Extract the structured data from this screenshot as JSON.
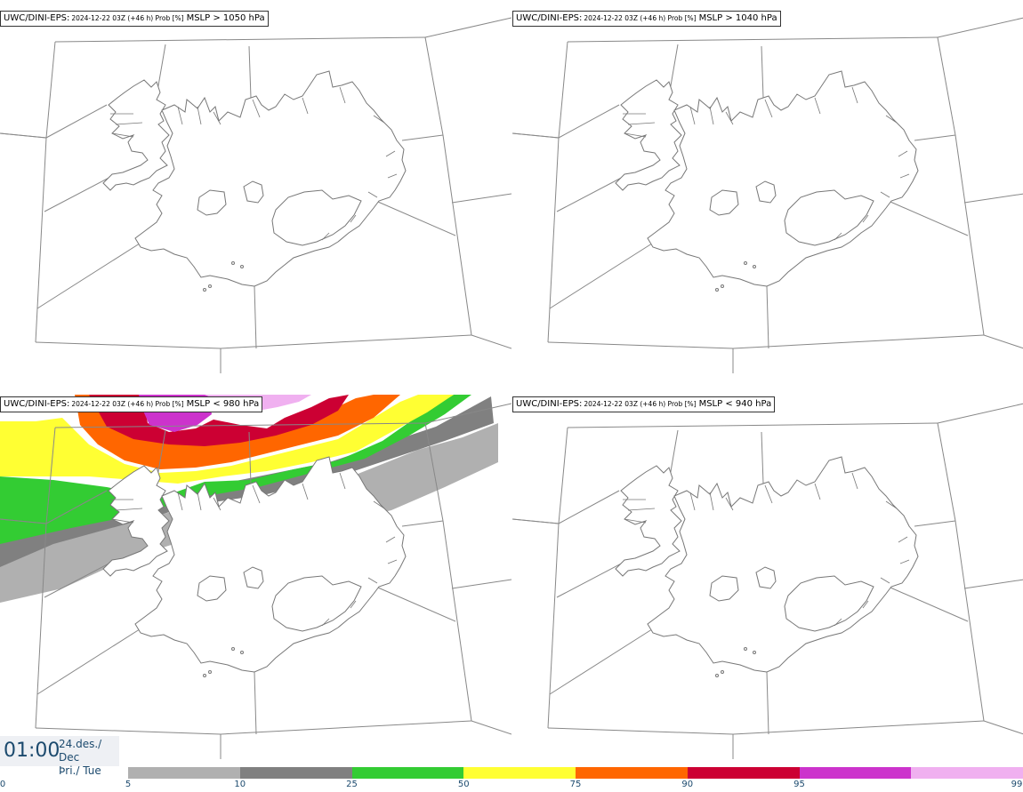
{
  "panels": [
    {
      "title_a": "UWC/DINI-EPS:",
      "title_b": "2024-12-22 03Z (+46 h) Prob [%]",
      "title_c": "MSLP > 1050 hPa",
      "has_field": false
    },
    {
      "title_a": "UWC/DINI-EPS:",
      "title_b": "2024-12-22 03Z (+46 h) Prob [%]",
      "title_c": "MSLP > 1040 hPa",
      "has_field": false
    },
    {
      "title_a": "UWC/DINI-EPS:",
      "title_b": "2024-12-22 03Z (+46 h) Prob [%]",
      "title_c": "MSLP < 980 hPa",
      "has_field": true
    },
    {
      "title_a": "UWC/DINI-EPS:",
      "title_b": "2024-12-22 03Z (+46 h) Prob [%]",
      "title_c": "MSLP < 940 hPa",
      "has_field": false
    }
  ],
  "time": {
    "clock": "01:00",
    "date_line1": "24.des./ Dec",
    "date_line2": "Þri./ Tue"
  },
  "colorbar": {
    "ticks": [
      "0",
      "5",
      "10",
      "25",
      "50",
      "75",
      "90",
      "95",
      "99"
    ],
    "colors": [
      "#b0b0b0",
      "#808080",
      "#33cc33",
      "#ffff33",
      "#ff6600",
      "#cc0033",
      "#cc33cc",
      "#f0b0f0"
    ]
  },
  "colors": {
    "coast": "#777777",
    "grid": "#888888"
  }
}
